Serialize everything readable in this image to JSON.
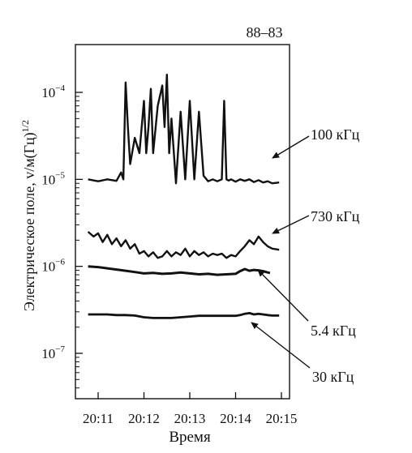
{
  "chart_data": {
    "type": "line",
    "title": "88–83",
    "xlabel": "Время",
    "ylabel": "Электрическое поле, v/м(Гц)",
    "ylabel_exp": "1/2",
    "yscale": "log",
    "ylim": [
      3e-08,
      0.0005
    ],
    "xlim": [
      "20:10.75",
      "20:15.15"
    ],
    "x_ticks": [
      "20:11",
      "20:12",
      "20:13",
      "20:14",
      "20:15"
    ],
    "y_ticks": [
      {
        "base": "10",
        "exp": "−4",
        "value": 0.0001
      },
      {
        "base": "10",
        "exp": "−5",
        "value": 1e-05
      },
      {
        "base": "10",
        "exp": "−6",
        "value": 1e-06
      },
      {
        "base": "10",
        "exp": "−7",
        "value": 1e-07
      }
    ],
    "grid": false,
    "series": [
      {
        "name": "100 кГц",
        "x_min": [
          10.78,
          11.0,
          11.2,
          11.4,
          11.5,
          11.55,
          11.6,
          11.65,
          11.7,
          11.8,
          11.9,
          12.0,
          12.05,
          12.1,
          12.15,
          12.2,
          12.3,
          12.4,
          12.45,
          12.5,
          12.55,
          12.6,
          12.7,
          12.8,
          12.9,
          13.0,
          13.1,
          13.2,
          13.3,
          13.4,
          13.5,
          13.6,
          13.7,
          13.75,
          13.8,
          13.85,
          13.9,
          14.0,
          14.1,
          14.2,
          14.3,
          14.4,
          14.5,
          14.6,
          14.7,
          14.8,
          14.95
        ],
        "values": [
          1e-05,
          9.5e-06,
          1e-05,
          9.6e-06,
          1.2e-05,
          1e-05,
          0.00013,
          4e-05,
          1.5e-05,
          3e-05,
          2e-05,
          8e-05,
          2e-05,
          4e-05,
          0.00011,
          2e-05,
          7e-05,
          0.00012,
          4e-05,
          0.00016,
          2e-05,
          5e-05,
          9e-06,
          6e-05,
          1e-05,
          8e-05,
          1e-05,
          6e-05,
          1.1e-05,
          9.5e-06,
          1e-05,
          9.5e-06,
          1e-05,
          8e-05,
          1e-05,
          9.7e-06,
          1e-05,
          9.4e-06,
          1e-05,
          9.6e-06,
          1e-05,
          9.3e-06,
          9.8e-06,
          9.2e-06,
          9.5e-06,
          9e-06,
          9.2e-06
        ]
      },
      {
        "name": "730 кГц",
        "x_min": [
          10.78,
          10.9,
          11.0,
          11.1,
          11.2,
          11.3,
          11.4,
          11.5,
          11.6,
          11.7,
          11.8,
          11.9,
          12.0,
          12.1,
          12.2,
          12.3,
          12.4,
          12.5,
          12.6,
          12.7,
          12.8,
          12.9,
          13.0,
          13.1,
          13.2,
          13.3,
          13.4,
          13.5,
          13.6,
          13.7,
          13.8,
          13.9,
          14.0,
          14.1,
          14.2,
          14.3,
          14.4,
          14.5,
          14.6,
          14.7,
          14.8,
          14.95
        ],
        "values": [
          2.5e-06,
          2.2e-06,
          2.4e-06,
          1.9e-06,
          2.3e-06,
          1.8e-06,
          2.1e-06,
          1.7e-06,
          2e-06,
          1.6e-06,
          1.8e-06,
          1.4e-06,
          1.5e-06,
          1.3e-06,
          1.45e-06,
          1.25e-06,
          1.3e-06,
          1.5e-06,
          1.3e-06,
          1.45e-06,
          1.35e-06,
          1.6e-06,
          1.3e-06,
          1.5e-06,
          1.35e-06,
          1.45e-06,
          1.3e-06,
          1.4e-06,
          1.35e-06,
          1.4e-06,
          1.25e-06,
          1.35e-06,
          1.3e-06,
          1.5e-06,
          1.7e-06,
          2e-06,
          1.8e-06,
          2.2e-06,
          1.9e-06,
          1.7e-06,
          1.6e-06,
          1.55e-06
        ]
      },
      {
        "name": "5.4 кГц",
        "x_min": [
          10.78,
          11.0,
          11.2,
          11.4,
          11.6,
          11.8,
          12.0,
          12.2,
          12.4,
          12.6,
          12.8,
          13.0,
          13.2,
          13.4,
          13.6,
          13.8,
          14.0,
          14.1,
          14.2,
          14.3,
          14.4,
          14.5,
          14.6,
          14.7,
          14.75
        ],
        "values": [
          1e-06,
          9.8e-07,
          9.5e-07,
          9.2e-07,
          8.9e-07,
          8.6e-07,
          8.3e-07,
          8.4e-07,
          8.2e-07,
          8.3e-07,
          8.5e-07,
          8.3e-07,
          8.1e-07,
          8.2e-07,
          8e-07,
          8.1e-07,
          8.2e-07,
          8.8e-07,
          9.3e-07,
          8.9e-07,
          9.1e-07,
          9e-07,
          8.8e-07,
          8.5e-07,
          8.4e-07
        ]
      },
      {
        "name": "30 кГц",
        "x_min": [
          10.78,
          11.0,
          11.2,
          11.4,
          11.6,
          11.8,
          12.0,
          12.2,
          12.4,
          12.6,
          12.8,
          13.0,
          13.2,
          13.4,
          13.6,
          13.8,
          14.0,
          14.1,
          14.2,
          14.3,
          14.4,
          14.5,
          14.6,
          14.7,
          14.8,
          14.95
        ],
        "values": [
          2.8e-07,
          2.8e-07,
          2.8e-07,
          2.75e-07,
          2.75e-07,
          2.72e-07,
          2.6e-07,
          2.55e-07,
          2.55e-07,
          2.55e-07,
          2.6e-07,
          2.65e-07,
          2.7e-07,
          2.7e-07,
          2.7e-07,
          2.7e-07,
          2.7e-07,
          2.75e-07,
          2.85e-07,
          2.9e-07,
          2.8e-07,
          2.85e-07,
          2.8e-07,
          2.75e-07,
          2.72e-07,
          2.72e-07
        ]
      }
    ],
    "annotations": [
      "100 кГц",
      "730 кГц",
      "5.4 кГц",
      "30 кГц"
    ],
    "line_color": "#111111"
  }
}
